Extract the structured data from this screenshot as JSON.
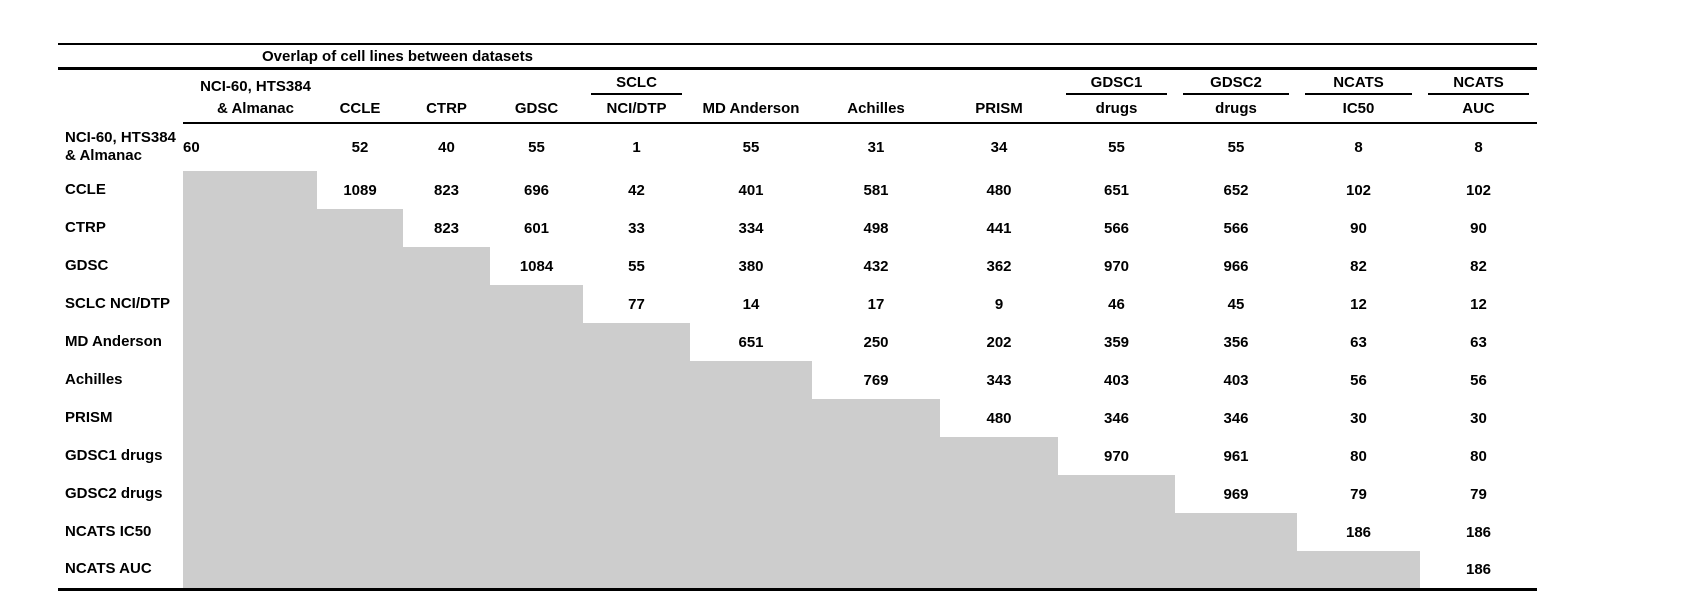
{
  "figure": {
    "title": "Overlap of cell lines between datasets"
  },
  "colors": {
    "shaded_cell": "#cdcdcd",
    "text": "#000000",
    "rule": "#000000",
    "background": "#ffffff"
  },
  "chart_data": {
    "type": "table",
    "title": "Overlap of cell lines between datasets",
    "layout_hint": "upper-right triangular matrix; diagonal holds dataset totals; lower-left triangle is solid gray shading with no values",
    "columns": [
      {
        "key": "nci60-almanac",
        "line1": "NCI-60, HTS384",
        "line2": "& Almanac",
        "underline": false,
        "align": "left"
      },
      {
        "key": "ccle",
        "line1": "",
        "line2": "CCLE",
        "underline": false,
        "align": "center"
      },
      {
        "key": "ctrp",
        "line1": "",
        "line2": "CTRP",
        "underline": false,
        "align": "center"
      },
      {
        "key": "gdsc",
        "line1": "",
        "line2": "GDSC",
        "underline": false,
        "align": "center"
      },
      {
        "key": "sclc-ncidtp",
        "line1": "SCLC",
        "line2": "NCI/DTP",
        "underline": true,
        "align": "center"
      },
      {
        "key": "md-anderson",
        "line1": "",
        "line2": "MD Anderson",
        "underline": false,
        "align": "center"
      },
      {
        "key": "achilles",
        "line1": "",
        "line2": "Achilles",
        "underline": false,
        "align": "center"
      },
      {
        "key": "prism",
        "line1": "",
        "line2": "PRISM",
        "underline": false,
        "align": "center"
      },
      {
        "key": "gdsc1-drugs",
        "line1": "GDSC1",
        "line2": "drugs",
        "underline": true,
        "align": "center"
      },
      {
        "key": "gdsc2-drugs",
        "line1": "GDSC2",
        "line2": "drugs",
        "underline": true,
        "align": "center"
      },
      {
        "key": "ncats-ic50",
        "line1": "NCATS",
        "line2": "IC50",
        "underline": true,
        "align": "center"
      },
      {
        "key": "ncats-auc",
        "line1": "NCATS",
        "line2": "AUC",
        "underline": true,
        "align": "center"
      }
    ],
    "rows": [
      {
        "key": "nci60-almanac",
        "label_lines": [
          "NCI-60, HTS384",
          "& Almanac"
        ],
        "values": [
          60,
          52,
          40,
          55,
          1,
          55,
          31,
          34,
          55,
          55,
          8,
          8
        ]
      },
      {
        "key": "ccle",
        "label_lines": [
          "CCLE"
        ],
        "values": [
          null,
          1089,
          823,
          696,
          42,
          401,
          581,
          480,
          651,
          652,
          102,
          102
        ]
      },
      {
        "key": "ctrp",
        "label_lines": [
          "CTRP"
        ],
        "values": [
          null,
          null,
          823,
          601,
          33,
          334,
          498,
          441,
          566,
          566,
          90,
          90
        ]
      },
      {
        "key": "gdsc",
        "label_lines": [
          "GDSC"
        ],
        "values": [
          null,
          null,
          null,
          1084,
          55,
          380,
          432,
          362,
          970,
          966,
          82,
          82
        ]
      },
      {
        "key": "sclc-ncidtp",
        "label_lines": [
          "SCLC NCI/DTP"
        ],
        "values": [
          null,
          null,
          null,
          null,
          77,
          14,
          17,
          9,
          46,
          45,
          12,
          12
        ]
      },
      {
        "key": "md-anderson",
        "label_lines": [
          "MD Anderson"
        ],
        "values": [
          null,
          null,
          null,
          null,
          null,
          651,
          250,
          202,
          359,
          356,
          63,
          63
        ]
      },
      {
        "key": "achilles",
        "label_lines": [
          "Achilles"
        ],
        "values": [
          null,
          null,
          null,
          null,
          null,
          null,
          769,
          343,
          403,
          403,
          56,
          56
        ]
      },
      {
        "key": "prism",
        "label_lines": [
          "PRISM"
        ],
        "values": [
          null,
          null,
          null,
          null,
          null,
          null,
          null,
          480,
          346,
          346,
          30,
          30
        ]
      },
      {
        "key": "gdsc1-drugs",
        "label_lines": [
          "GDSC1 drugs"
        ],
        "values": [
          null,
          null,
          null,
          null,
          null,
          null,
          null,
          null,
          970,
          961,
          80,
          80
        ]
      },
      {
        "key": "gdsc2-drugs",
        "label_lines": [
          "GDSC2 drugs"
        ],
        "values": [
          null,
          null,
          null,
          null,
          null,
          null,
          null,
          null,
          null,
          969,
          79,
          79
        ]
      },
      {
        "key": "ncats-ic50",
        "label_lines": [
          "NCATS IC50"
        ],
        "values": [
          null,
          null,
          null,
          null,
          null,
          null,
          null,
          null,
          null,
          null,
          186,
          186
        ]
      },
      {
        "key": "ncats-auc",
        "label_lines": [
          "NCATS AUC"
        ],
        "values": [
          null,
          null,
          null,
          null,
          null,
          null,
          null,
          null,
          null,
          null,
          null,
          186
        ]
      }
    ]
  }
}
